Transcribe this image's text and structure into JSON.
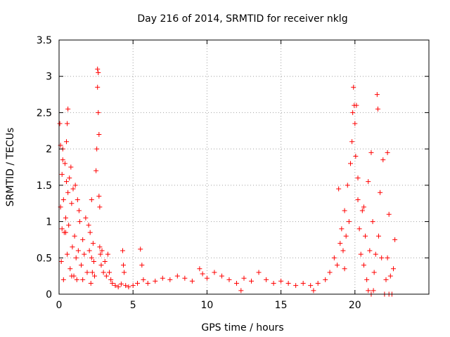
{
  "chart_data": {
    "type": "scatter",
    "title": "Day 216 of 2014, SRMTID for receiver nklg",
    "xlabel": "GPS time / hours",
    "ylabel": "SRMTID / TECUs",
    "xlim": [
      0,
      25
    ],
    "ylim": [
      0,
      3.5
    ],
    "xticks": [
      0,
      5,
      10,
      15,
      20
    ],
    "xtick_labels": [
      "0",
      "5",
      "10",
      "15",
      "20"
    ],
    "yticks": [
      0,
      0.5,
      1,
      1.5,
      2,
      2.5,
      3,
      3.5
    ],
    "ytick_labels": [
      "0",
      "0.5",
      "1",
      "1.5",
      "2",
      "2.5",
      "3",
      "3.5"
    ],
    "grid": true,
    "marker": "+",
    "marker_color": "#ff0000",
    "series": [
      {
        "name": "SRMTID",
        "points": [
          [
            0.05,
            2.35
          ],
          [
            0.1,
            2.05
          ],
          [
            0.1,
            1.2
          ],
          [
            0.15,
            0.45
          ],
          [
            0.2,
            0.9
          ],
          [
            0.2,
            1.65
          ],
          [
            0.25,
            2.0
          ],
          [
            0.3,
            1.3
          ],
          [
            0.3,
            0.2
          ],
          [
            0.35,
            0.85
          ],
          [
            0.4,
            1.8
          ],
          [
            0.45,
            1.05
          ],
          [
            0.5,
            2.1
          ],
          [
            0.5,
            1.55
          ],
          [
            0.55,
            0.55
          ],
          [
            0.55,
            2.35
          ],
          [
            0.6,
            1.4
          ],
          [
            0.6,
            2.55
          ],
          [
            0.65,
            0.95
          ],
          [
            0.7,
            1.6
          ],
          [
            0.75,
            0.35
          ],
          [
            0.8,
            1.75
          ],
          [
            0.85,
            1.25
          ],
          [
            0.9,
            0.65
          ],
          [
            0.95,
            1.45
          ],
          [
            1.0,
            0.25
          ],
          [
            1.05,
            0.8
          ],
          [
            1.1,
            1.5
          ],
          [
            1.15,
            0.5
          ],
          [
            1.2,
            0.2
          ],
          [
            1.25,
            1.3
          ],
          [
            1.3,
            0.6
          ],
          [
            1.4,
            1.0
          ],
          [
            1.5,
            0.4
          ],
          [
            1.6,
            0.75
          ],
          [
            1.7,
            0.55
          ],
          [
            1.8,
            1.05
          ],
          [
            1.9,
            0.3
          ],
          [
            2.0,
            0.95
          ],
          [
            2.05,
            0.6
          ],
          [
            2.1,
            0.85
          ],
          [
            2.15,
            0.15
          ],
          [
            2.2,
            0.5
          ],
          [
            2.25,
            0.3
          ],
          [
            2.3,
            0.7
          ],
          [
            2.35,
            0.45
          ],
          [
            2.4,
            0.25
          ],
          [
            2.5,
            1.7
          ],
          [
            2.55,
            2.0
          ],
          [
            2.6,
            2.85
          ],
          [
            2.6,
            3.1
          ],
          [
            2.65,
            3.05
          ],
          [
            2.65,
            2.5
          ],
          [
            2.7,
            2.2
          ],
          [
            2.7,
            1.35
          ],
          [
            2.75,
            1.2
          ],
          [
            2.75,
            0.65
          ],
          [
            2.8,
            0.55
          ],
          [
            2.85,
            0.4
          ],
          [
            2.9,
            0.6
          ],
          [
            3.0,
            0.3
          ],
          [
            3.1,
            0.45
          ],
          [
            3.2,
            0.25
          ],
          [
            3.3,
            0.55
          ],
          [
            3.4,
            0.3
          ],
          [
            3.5,
            0.2
          ],
          [
            3.6,
            0.15
          ],
          [
            3.8,
            0.12
          ],
          [
            4.0,
            0.1
          ],
          [
            4.2,
            0.14
          ],
          [
            4.3,
            0.6
          ],
          [
            4.35,
            0.4
          ],
          [
            4.4,
            0.3
          ],
          [
            4.5,
            0.12
          ],
          [
            4.7,
            0.1
          ],
          [
            5.0,
            0.12
          ],
          [
            5.3,
            0.15
          ],
          [
            5.5,
            0.62
          ],
          [
            5.6,
            0.4
          ],
          [
            5.7,
            0.2
          ],
          [
            6.0,
            0.15
          ],
          [
            6.5,
            0.18
          ],
          [
            7.0,
            0.22
          ],
          [
            7.5,
            0.2
          ],
          [
            8.0,
            0.25
          ],
          [
            8.5,
            0.22
          ],
          [
            9.0,
            0.18
          ],
          [
            9.5,
            0.35
          ],
          [
            9.7,
            0.28
          ],
          [
            10.0,
            0.22
          ],
          [
            10.5,
            0.3
          ],
          [
            11.0,
            0.25
          ],
          [
            11.5,
            0.2
          ],
          [
            12.0,
            0.15
          ],
          [
            12.3,
            0.05
          ],
          [
            12.5,
            0.22
          ],
          [
            13.0,
            0.18
          ],
          [
            13.5,
            0.3
          ],
          [
            14.0,
            0.2
          ],
          [
            14.5,
            0.15
          ],
          [
            15.0,
            0.18
          ],
          [
            15.5,
            0.15
          ],
          [
            16.0,
            0.12
          ],
          [
            16.5,
            0.15
          ],
          [
            17.0,
            0.12
          ],
          [
            17.2,
            0.05
          ],
          [
            17.5,
            0.15
          ],
          [
            18.0,
            0.2
          ],
          [
            18.3,
            0.3
          ],
          [
            18.6,
            0.5
          ],
          [
            18.8,
            0.4
          ],
          [
            18.9,
            1.45
          ],
          [
            19.0,
            0.7
          ],
          [
            19.1,
            0.9
          ],
          [
            19.2,
            0.6
          ],
          [
            19.3,
            1.15
          ],
          [
            19.4,
            0.8
          ],
          [
            19.5,
            1.5
          ],
          [
            19.6,
            1.0
          ],
          [
            19.7,
            1.8
          ],
          [
            19.8,
            2.1
          ],
          [
            19.85,
            2.5
          ],
          [
            19.9,
            2.85
          ],
          [
            19.95,
            2.6
          ],
          [
            20.0,
            2.35
          ],
          [
            20.05,
            1.9
          ],
          [
            20.1,
            2.6
          ],
          [
            20.2,
            1.3
          ],
          [
            20.3,
            0.9
          ],
          [
            20.4,
            0.55
          ],
          [
            20.5,
            1.15
          ],
          [
            20.6,
            0.4
          ],
          [
            20.7,
            0.8
          ],
          [
            20.8,
            0.2
          ],
          [
            20.9,
            1.55
          ],
          [
            21.0,
            0.6
          ],
          [
            21.1,
            1.95
          ],
          [
            21.2,
            1.0
          ],
          [
            21.3,
            0.3
          ],
          [
            21.4,
            0.55
          ],
          [
            21.5,
            2.75
          ],
          [
            21.55,
            2.55
          ],
          [
            21.6,
            0.8
          ],
          [
            21.7,
            1.4
          ],
          [
            21.8,
            0.5
          ],
          [
            21.9,
            1.85
          ],
          [
            22.0,
            0.0
          ],
          [
            22.1,
            0.2
          ],
          [
            22.2,
            0.5
          ],
          [
            22.3,
            1.1
          ],
          [
            22.4,
            0.25
          ],
          [
            22.5,
            0.0
          ],
          [
            22.6,
            0.35
          ],
          [
            22.7,
            0.75
          ],
          [
            20.2,
            1.6
          ],
          [
            20.6,
            1.2
          ],
          [
            19.3,
            0.35
          ],
          [
            21.1,
            0.0
          ],
          [
            20.9,
            0.05
          ],
          [
            22.2,
            1.95
          ],
          [
            1.6,
            0.2
          ],
          [
            0.45,
            0.85
          ],
          [
            1.35,
            1.15
          ],
          [
            0.25,
            1.85
          ],
          [
            2.2,
            1.3
          ],
          [
            0.85,
            0.25
          ],
          [
            22.3,
            0.0
          ],
          [
            21.25,
            0.05
          ]
        ]
      }
    ]
  }
}
